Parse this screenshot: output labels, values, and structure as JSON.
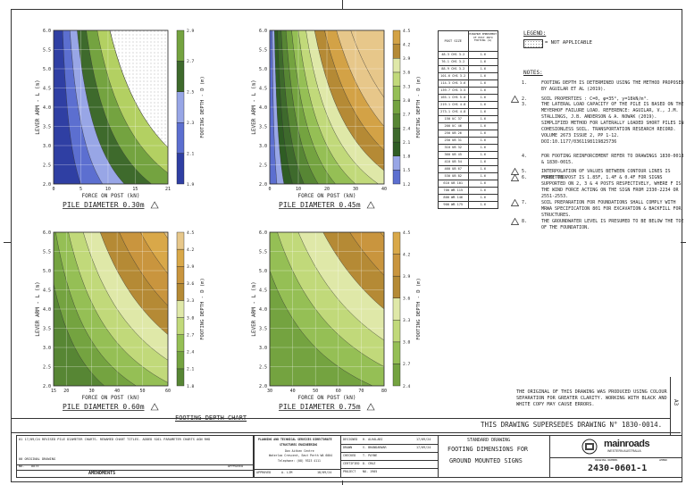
{
  "sheet": {
    "chart_section_title": "FOOTING DEPTH CHART",
    "supersede_note": "THIS DRAWING SUPERSEDES DRAWING N° 1830-0014.",
    "legend_title": "LEGEND:",
    "legend_item": "= NOT APPLICABLE",
    "notes_title": "NOTES:",
    "notes": [
      {
        "num": "1.",
        "text": "FOOTING DEPTH IS DETERMINED USING THE METHOD PROPOSED BY AGUILAR ET AL (2019)."
      },
      {
        "num": "2.",
        "text": "SOIL PROPERTIES : C=0, φ=35°, γ=18kN/m³."
      },
      {
        "num": "3.",
        "text": "THE LATERAL LOAD CAPACITY OF THE PILE IS BASED ON THE MEYERHOF FAILURE LOAD. REFERENCE: AGUILAR, V., J.M. STALLINGS, J.B. ANDERSON & A. NOWAK (2019). SIMPLIFIED METHOD FOR LATERALLY LOADED SHORT PILES IN COHESIONLESS SOIL. TRANSPORTATION RESEARCH RECORD. VOLUME 2673 ISSUE 2, PP 1-12. DOI:10.1177/0361198119825736"
      },
      {
        "num": "4.",
        "text": "FOR FOOTING REINFORCEMENT REFER TO DRAWINGS 1830-0013 & 1830-0015."
      },
      {
        "num": "5.",
        "text": "INTERPOLATION OF VALUES BETWEEN CONTOUR LINES IS PERMITTED."
      },
      {
        "num": "6.",
        "text": "FORCE ON POST IS 1.85F, 1.4F & 0.4F FOR SIGNS SUPPORTED ON 2, 3 & 4 POSTS RESPECTIVELY, WHERE F IS THE WIND FORCE ACTING ON THE SIGN FROM 2330-2234 OR 2551-2553."
      },
      {
        "num": "7.",
        "text": "SOIL PREPARATION FOR FOUNDATIONS SHALL COMPLY WITH MRWA SPECIFICATION 801 FOR EXCAVATION & BACKFILL FOR STRUCTURES."
      },
      {
        "num": "8.",
        "text": "THE GROUNDWATER LEVEL IS PRESUMED TO BE BELOW THE TOE OF THE FOUNDATION."
      }
    ],
    "original_note": "THE ORIGINAL OF THIS DRAWING WAS PRODUCED USING COLOUR SEPARATION FOR GREATER CLARITY. WORKING WITH BLACK AND WHITE COPY MAY CAUSE ERRORS.",
    "sheet_size": "A3",
    "sheet_size_label": "A 3"
  },
  "post_table": {
    "headers": [
      "POST SIZE",
      "MINIMUM EMBEDMENT OF POST INTO FOOTING (m)"
    ],
    "rows": [
      [
        "48.3 CHS 3.2",
        "1.6"
      ],
      [
        "76.1 CHS 3.2",
        "1.6"
      ],
      [
        "88.9 CHS 3.2",
        "1.6"
      ],
      [
        "101.6 CHS 3.2",
        "1.6"
      ],
      [
        "114.3 CHS 3.6",
        "1.6"
      ],
      [
        "139.7 CHS 3.5",
        "1.6"
      ],
      [
        "165.1 CHS 5.0",
        "1.6"
      ],
      [
        "219.1 CHS 4.8",
        "1.6"
      ],
      [
        "273.1 CHS 4.8",
        "1.6"
      ],
      [
        "150 UC 37",
        "1.6"
      ],
      [
        "200 UC 46",
        "1.6"
      ],
      [
        "250 UB 26",
        "1.6"
      ],
      [
        "250 UB 31",
        "1.6"
      ],
      [
        "310 UB 32",
        "1.6"
      ],
      [
        "360 UB 45",
        "1.6"
      ],
      [
        "410 UB 54",
        "1.6"
      ],
      [
        "460 UB 67",
        "1.6"
      ],
      [
        "530 UB 82",
        "1.6"
      ],
      [
        "610 UB 101",
        "1.6"
      ],
      [
        "700 WB 115",
        "1.6"
      ],
      [
        "800 WB 146",
        "1.6"
      ],
      [
        "900 WB 175",
        "1.6"
      ]
    ]
  },
  "title_block": {
    "amendment_rows": [
      [
        "01",
        "17/09/24",
        "REVISED PILE DIAMETER CHARTS. RENAMED CHART TITLES. ADDED SOIL PARAMETER CHARTS",
        "AGN",
        "RHD"
      ],
      [
        "00",
        "",
        "ORIGINAL DRAWING",
        "",
        ""
      ]
    ],
    "amend_header": [
      "No.",
      "DATE",
      "AMENDMENTS",
      "APPROVED"
    ],
    "office": "PLANNING AND TECHNICAL SERVICES DIRECTORATE",
    "office2": "STRUCTURES ENGINEERING",
    "address1": "Don Aitken Centre",
    "address2": "Waterloo Crescent, East Perth WA 6004",
    "phone": "Telephone: (08) 9323 4111",
    "approved_label": "APPROVED",
    "approved_by": "A. LIM",
    "approved_date": "18/09/24",
    "roles": [
      [
        "DESIGNED",
        "H. ALHALABI",
        "17/09/24"
      ],
      [
        "DRAWN",
        "V. BHANDARWAR",
        "17/09/24"
      ],
      [
        "CHECKED",
        "T. PAYNE",
        ""
      ],
      [
        "CERTIFIED",
        "D. CRUZ",
        ""
      ],
      [
        "PROJECT",
        "NO. 1905",
        ""
      ]
    ],
    "title_1": "STANDARD DRAWING",
    "title_2": "FOOTING DIMENSIONS FOR",
    "title_3": "GROUND MOUNTED SIGNS",
    "logo_text": "mainroads",
    "logo_sub": "WESTERN AUSTRALIA",
    "drawing_no_label": "DRAWING NUMBER",
    "amend_label": "AMEND",
    "drawing_no": "2430-0601-1"
  },
  "charts_common": {
    "xlabel": "FORCE ON POST (kN)",
    "ylabel": "LEVER ARM - L (m)",
    "cbar_label": "FOOTING DEPTH - D (m)"
  },
  "chart_data": [
    {
      "type": "heatmap",
      "title": "PILE DIAMETER 0.30m",
      "xlabel": "FORCE ON POST (kN)",
      "ylabel": "LEVER ARM - L (m)",
      "xlim": [
        0,
        21
      ],
      "ylim": [
        2.0,
        6.0
      ],
      "xticks": [
        0,
        5,
        10,
        15,
        21
      ],
      "yticks": [
        2.0,
        2.5,
        3.0,
        3.5,
        4.0,
        4.5,
        5.0,
        5.5,
        6.0
      ],
      "colorbar": {
        "label": "FOOTING DEPTH - D (m)",
        "levels": [
          1.9,
          2.1,
          2.3,
          2.5,
          2.7,
          2.9
        ],
        "ticks": [
          "1.9",
          "2.1",
          "2.3",
          "2.5",
          "2.7",
          "2.9"
        ]
      },
      "levels_k": [
        10,
        18,
        26,
        36,
        48,
        62
      ],
      "colors": [
        "#2f3fa3",
        "#5c6fd0",
        "#98a6e6",
        "#3e6a2c",
        "#74a340",
        "#b3d062"
      ],
      "na_region": true
    },
    {
      "type": "heatmap",
      "title": "PILE DIAMETER 0.45m",
      "xlabel": "FORCE ON POST (kN)",
      "ylabel": "LEVER ARM - L (m)",
      "xlim": [
        0,
        40
      ],
      "ylim": [
        2.0,
        6.0
      ],
      "xticks": [
        0,
        10,
        20,
        30,
        40
      ],
      "yticks": [
        2.0,
        2.5,
        3.0,
        3.5,
        4.0,
        4.5,
        5.0,
        5.5,
        6.0
      ],
      "colorbar": {
        "label": "FOOTING DEPTH - D (m)",
        "levels": [
          1.2,
          1.5,
          1.8,
          2.1,
          2.4,
          2.7,
          3.0,
          3.3,
          3.6,
          3.9,
          4.2,
          4.5
        ],
        "ticks": [
          "1.2",
          "1.5",
          "1.8",
          "2.1",
          "2.4",
          "2.7",
          "3.0",
          "3.3",
          "3.6",
          "3.9",
          "4.2",
          "4.5"
        ]
      },
      "levels_k": [
        5,
        10,
        16,
        24,
        34,
        46,
        60,
        76,
        94,
        115,
        140,
        170
      ],
      "colors": [
        "#5c6fd0",
        "#98a6e6",
        "#2f5d24",
        "#3e6a2c",
        "#578634",
        "#74a340",
        "#95bf55",
        "#c1d97a",
        "#dfe8a8",
        "#b58a35",
        "#d3a246",
        "#e7c78a"
      ],
      "na_region": false
    },
    {
      "type": "heatmap",
      "title": "PILE DIAMETER 0.60m",
      "xlabel": "FORCE ON POST (kN)",
      "ylabel": "LEVER ARM - L (m)",
      "xlim": [
        15,
        60
      ],
      "ylim": [
        2.0,
        6.0
      ],
      "xticks": [
        15,
        20,
        30,
        40,
        50,
        60
      ],
      "yticks": [
        2.0,
        2.5,
        3.0,
        3.5,
        4.0,
        4.5,
        5.0,
        5.5,
        6.0
      ],
      "colorbar": {
        "label": "FOOTING DEPTH - D (m)",
        "levels": [
          1.8,
          2.1,
          2.4,
          2.7,
          3.0,
          3.3,
          3.6,
          3.9,
          4.2,
          4.5
        ],
        "ticks": [
          "1.8",
          "2.1",
          "2.4",
          "2.7",
          "3.0",
          "3.3",
          "3.6",
          "3.9",
          "4.2",
          "4.5"
        ]
      },
      "levels_k": [
        70,
        95,
        125,
        160,
        200,
        245,
        295,
        350,
        410
      ],
      "colors": [
        "#578634",
        "#74a340",
        "#95bf55",
        "#c1d97a",
        "#dfe8a8",
        "#b58a35",
        "#c9953e",
        "#d9a849",
        "#e7c78a",
        "#f0dcb4"
      ],
      "na_region": false
    },
    {
      "type": "heatmap",
      "title": "PILE DIAMETER 0.75m",
      "xlabel": "FORCE ON POST (kN)",
      "ylabel": "LEVER ARM - L (m)",
      "xlim": [
        30,
        80
      ],
      "ylim": [
        2.0,
        6.0
      ],
      "xticks": [
        30,
        40,
        50,
        60,
        70,
        80
      ],
      "yticks": [
        2.0,
        2.5,
        3.0,
        3.5,
        4.0,
        4.5,
        5.0,
        5.5,
        6.0
      ],
      "colorbar": {
        "label": "FOOTING DEPTH - D (m)",
        "levels": [
          2.4,
          2.7,
          3.0,
          3.3,
          3.6,
          3.9,
          4.2,
          4.5
        ],
        "ticks": [
          "2.4",
          "2.7",
          "3.0",
          "3.3",
          "3.6",
          "3.9",
          "4.2",
          "4.5"
        ]
      },
      "levels_k": [
        150,
        200,
        255,
        320,
        390,
        470,
        560
      ],
      "colors": [
        "#74a340",
        "#95bf55",
        "#c1d97a",
        "#dfe8a8",
        "#b58a35",
        "#c9953e",
        "#d9a849",
        "#e7c78a"
      ],
      "na_region": false
    }
  ]
}
